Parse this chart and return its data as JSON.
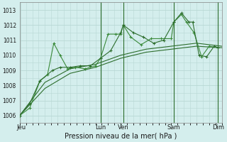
{
  "background_color": "#d4eeed",
  "grid_color": "#b8d8d4",
  "line_color1": "#2d6e2d",
  "line_color2": "#3a8a3a",
  "xlim": [
    0,
    8.0
  ],
  "ylim": [
    1005.5,
    1013.5
  ],
  "yticks": [
    1006,
    1007,
    1008,
    1009,
    1010,
    1011,
    1012,
    1013
  ],
  "xlabel": "Pression niveau de la mer( hPa )",
  "day_labels": [
    "Jeu",
    "Lun",
    "Ven",
    "Sam",
    "Dim"
  ],
  "day_positions": [
    0.05,
    3.2,
    4.1,
    6.1,
    7.85
  ],
  "vline_positions": [
    3.2,
    4.1,
    6.1,
    7.85
  ],
  "series1_x": [
    0.0,
    0.4,
    0.8,
    1.1,
    1.35,
    1.6,
    1.9,
    2.2,
    2.6,
    3.0,
    3.2,
    3.5,
    3.8,
    4.0,
    4.1,
    4.4,
    4.8,
    5.2,
    5.6,
    6.0,
    6.1,
    6.4,
    6.6,
    6.9,
    7.2,
    7.5,
    7.85
  ],
  "series1_y": [
    1006.0,
    1006.5,
    1008.3,
    1008.7,
    1010.8,
    1010.0,
    1009.1,
    1009.2,
    1009.1,
    1009.3,
    1009.8,
    1011.4,
    1011.4,
    1011.4,
    1012.0,
    1011.2,
    1010.7,
    1011.1,
    1011.1,
    1011.1,
    1012.2,
    1012.7,
    1012.2,
    1011.5,
    1009.9,
    1010.6,
    1010.5
  ],
  "series2_x": [
    0.0,
    0.4,
    0.8,
    1.3,
    1.6,
    2.0,
    2.4,
    2.8,
    3.2,
    3.6,
    4.0,
    4.1,
    4.5,
    4.9,
    5.3,
    5.7,
    6.1,
    6.4,
    6.7,
    6.85,
    7.1,
    7.4,
    7.7,
    7.85
  ],
  "series2_y": [
    1006.0,
    1006.8,
    1008.3,
    1009.0,
    1009.2,
    1009.2,
    1009.3,
    1009.3,
    1009.8,
    1010.3,
    1011.5,
    1012.0,
    1011.5,
    1011.2,
    1010.8,
    1011.0,
    1012.2,
    1012.8,
    1012.2,
    1012.2,
    1010.0,
    1009.9,
    1010.6,
    1010.5
  ],
  "series3_x": [
    0.0,
    1.0,
    2.0,
    3.0,
    4.0,
    5.0,
    6.0,
    7.0,
    8.0
  ],
  "series3_y": [
    1006.0,
    1007.8,
    1008.8,
    1009.2,
    1009.8,
    1010.2,
    1010.4,
    1010.6,
    1010.5
  ],
  "series4_x": [
    0.0,
    1.0,
    2.0,
    3.0,
    4.0,
    5.0,
    6.0,
    7.0,
    8.0
  ],
  "series4_y": [
    1006.0,
    1008.2,
    1009.1,
    1009.4,
    1010.0,
    1010.4,
    1010.6,
    1010.8,
    1010.6
  ],
  "ytick_fontsize": 5.5,
  "xtick_fontsize": 6.0,
  "xlabel_fontsize": 7.0
}
